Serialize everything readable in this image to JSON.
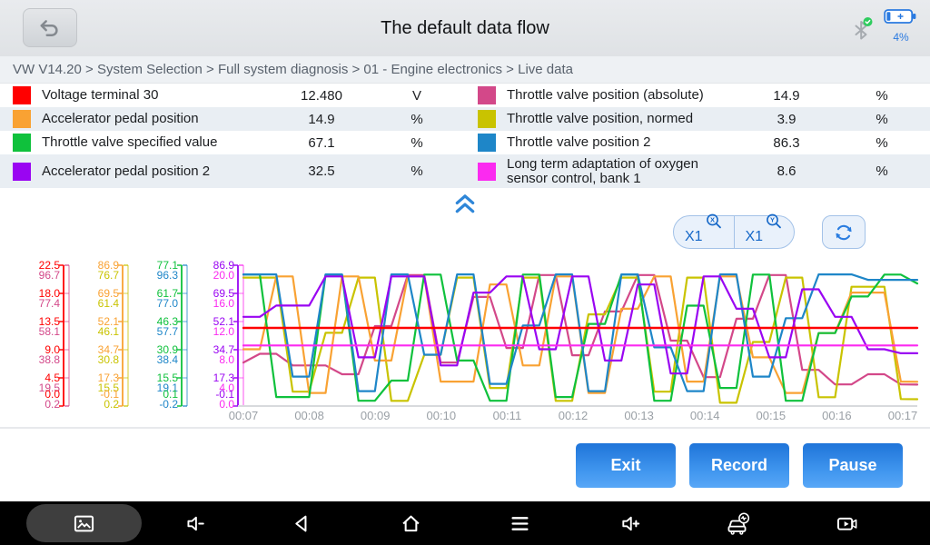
{
  "topbar": {
    "title": "The default data flow",
    "battery_percent": "4%",
    "bluetooth_status": "connected"
  },
  "breadcrumb": "VW V14.20 > System Selection  > Full system diagnosis  > 01 - Engine electronics  > Live data",
  "table": {
    "left": [
      {
        "label": "Voltage terminal 30",
        "value": "12.480",
        "unit": "V",
        "color": "#ff0000"
      },
      {
        "label": "Accelerator pedal position",
        "value": "14.9",
        "unit": "%",
        "color": "#f9a233"
      },
      {
        "label": "Throttle valve specified value",
        "value": "67.1",
        "unit": "%",
        "color": "#0fc13c"
      },
      {
        "label": "Accelerator pedal position 2",
        "value": "32.5",
        "unit": "%",
        "color": "#9a05f2"
      }
    ],
    "right": [
      {
        "label": "Throttle valve position (absolute)",
        "value": "14.9",
        "unit": "%",
        "color": "#d34889"
      },
      {
        "label": "Throttle valve position, normed",
        "value": "3.9",
        "unit": "%",
        "color": "#c9c300"
      },
      {
        "label": "Throttle valve position 2",
        "value": "86.3",
        "unit": "%",
        "color": "#1e86c8"
      },
      {
        "label": "Long term adaptation of oxygen sensor control, bank 1",
        "value": "8.6",
        "unit": "%",
        "color": "#fb2af0"
      }
    ]
  },
  "controls": {
    "x_zoom": "X1",
    "y_zoom": "X1"
  },
  "footer_buttons": {
    "exit": "Exit",
    "record": "Record",
    "pause": "Pause"
  },
  "navbar": {
    "icons": [
      "screenshot",
      "volume-down",
      "back",
      "home",
      "menu",
      "volume-up",
      "vehicle-diagnostics",
      "screen-record"
    ]
  },
  "chart_data": {
    "type": "line",
    "x_ticks": [
      "00:07",
      "00:08",
      "00:09",
      "00:10",
      "00:11",
      "00:12",
      "00:13",
      "00:14",
      "00:15",
      "00:16",
      "00:17"
    ],
    "legend_position": "none",
    "grid": false,
    "axis_columns": [
      [
        0,
        1
      ],
      [
        2,
        3
      ],
      [
        4,
        5
      ],
      [
        6,
        7
      ]
    ],
    "draw_order": [
      1,
      3,
      2,
      4,
      5,
      6,
      7,
      0
    ],
    "series": [
      {
        "name": "Voltage terminal 30",
        "unit": "V",
        "color": "#ff0000",
        "axis_ticks": [
          "22.5",
          "18.0",
          "13.5",
          "9.0",
          "4.5",
          "0.0"
        ],
        "values": [
          12.48,
          12.48
        ]
      },
      {
        "name": "Throttle valve position (absolute)",
        "unit": "%",
        "color": "#d34889",
        "axis_ticks": [
          "96.7",
          "77.4",
          "58.1",
          "38.8",
          "19.5",
          "0.2"
        ],
        "values": [
          30,
          36,
          36,
          28,
          28,
          28,
          22,
          22,
          55,
          55,
          90,
          90,
          30,
          30,
          75,
          75,
          40,
          40,
          90,
          90,
          35,
          35,
          65,
          65,
          90,
          90,
          45,
          45,
          20,
          20,
          60,
          60,
          90,
          90,
          25,
          25,
          15,
          15,
          22,
          22,
          15,
          14.9
        ]
      },
      {
        "name": "Accelerator pedal position",
        "unit": "%",
        "color": "#f9a233",
        "axis_ticks": [
          "86.9",
          "69.5",
          "52.1",
          "34.7",
          "17.3",
          "-0.1"
        ],
        "values": [
          35,
          35,
          80,
          80,
          8,
          8,
          80,
          80,
          28,
          28,
          80,
          80,
          15,
          15,
          15,
          75,
          75,
          25,
          25,
          80,
          80,
          8,
          8,
          60,
          60,
          80,
          80,
          15,
          15,
          80,
          80,
          30,
          30,
          8,
          8,
          45,
          45,
          70,
          70,
          70,
          15,
          14.9
        ]
      },
      {
        "name": "Throttle valve position, normed",
        "unit": "%",
        "color": "#c9c300",
        "axis_ticks": [
          "76.7",
          "61.4",
          "46.1",
          "30.8",
          "15.5",
          "0.2"
        ],
        "values": [
          70,
          70,
          70,
          8,
          8,
          40,
          40,
          70,
          70,
          3,
          3,
          28,
          28,
          70,
          70,
          10,
          10,
          70,
          70,
          3,
          3,
          50,
          50,
          70,
          70,
          8,
          8,
          70,
          70,
          2,
          2,
          35,
          35,
          70,
          70,
          5,
          5,
          65,
          65,
          65,
          4,
          3.9
        ]
      },
      {
        "name": "Throttle valve specified value",
        "unit": "%",
        "color": "#0fc13c",
        "axis_ticks": [
          "77.1",
          "61.7",
          "46.3",
          "30.9",
          "15.5",
          "0.1"
        ],
        "values": [
          72,
          72,
          5,
          5,
          5,
          72,
          72,
          3,
          3,
          14,
          14,
          72,
          72,
          25,
          25,
          3,
          3,
          72,
          72,
          5,
          5,
          45,
          45,
          72,
          72,
          3,
          3,
          55,
          55,
          10,
          10,
          72,
          72,
          3,
          3,
          40,
          40,
          60,
          60,
          72,
          72,
          67.1
        ]
      },
      {
        "name": "Throttle valve position 2",
        "unit": "%",
        "color": "#1e86c8",
        "axis_ticks": [
          "96.3",
          "77.0",
          "57.7",
          "38.4",
          "19.1",
          "-0.2"
        ],
        "values": [
          90,
          90,
          90,
          20,
          20,
          90,
          90,
          10,
          10,
          90,
          90,
          35,
          35,
          90,
          90,
          15,
          15,
          55,
          55,
          90,
          90,
          10,
          10,
          90,
          90,
          40,
          40,
          10,
          10,
          90,
          90,
          20,
          20,
          60,
          60,
          90,
          90,
          90,
          86.3,
          86.3,
          86.3,
          86.3
        ]
      },
      {
        "name": "Accelerator pedal position 2",
        "unit": "%",
        "color": "#9a05f2",
        "axis_ticks": [
          "86.9",
          "69.5",
          "52.1",
          "34.7",
          "17.3",
          "-0.1"
        ],
        "values": [
          55,
          55,
          62,
          62,
          62,
          80,
          80,
          30,
          30,
          80,
          80,
          80,
          25,
          25,
          70,
          70,
          80,
          80,
          35,
          35,
          80,
          80,
          28,
          28,
          75,
          75,
          20,
          20,
          80,
          80,
          60,
          60,
          30,
          30,
          72,
          72,
          55,
          55,
          35,
          35,
          32.5,
          32.5
        ]
      },
      {
        "name": "Long term adaptation of oxygen sensor control, bank 1",
        "unit": "%",
        "color": "#fb2af0",
        "axis_ticks": [
          "20.0",
          "16.0",
          "12.0",
          "8.0",
          "4.0",
          "0.0"
        ],
        "values": [
          8.6,
          8.6
        ]
      }
    ]
  }
}
